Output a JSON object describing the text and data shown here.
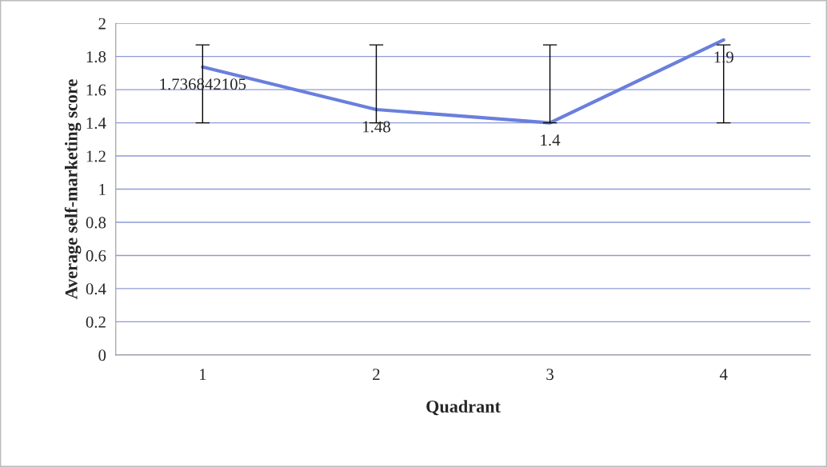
{
  "chart_data": {
    "type": "line",
    "xlabel": "Quadrant",
    "ylabel": "Average self-marketing score",
    "categories": [
      "1",
      "2",
      "3",
      "4"
    ],
    "series": [
      {
        "color": "#6a7fdc",
        "values": [
          1.736842105,
          1.48,
          1.4,
          1.9
        ],
        "errors": [
          [
            1.4,
            1.87
          ],
          [
            1.4,
            1.87
          ],
          [
            1.4,
            1.87
          ],
          [
            1.4,
            1.87
          ]
        ],
        "value_labels": [
          "1.736842105",
          "1.48",
          "1.4",
          "1.9"
        ]
      }
    ],
    "ylim": [
      0,
      2
    ],
    "yticks": [
      0,
      0.2,
      0.4,
      0.6,
      0.8,
      1,
      1.2,
      1.4,
      1.6,
      1.8,
      2
    ],
    "grid": "y",
    "marker": "none",
    "line_style": "solid"
  }
}
